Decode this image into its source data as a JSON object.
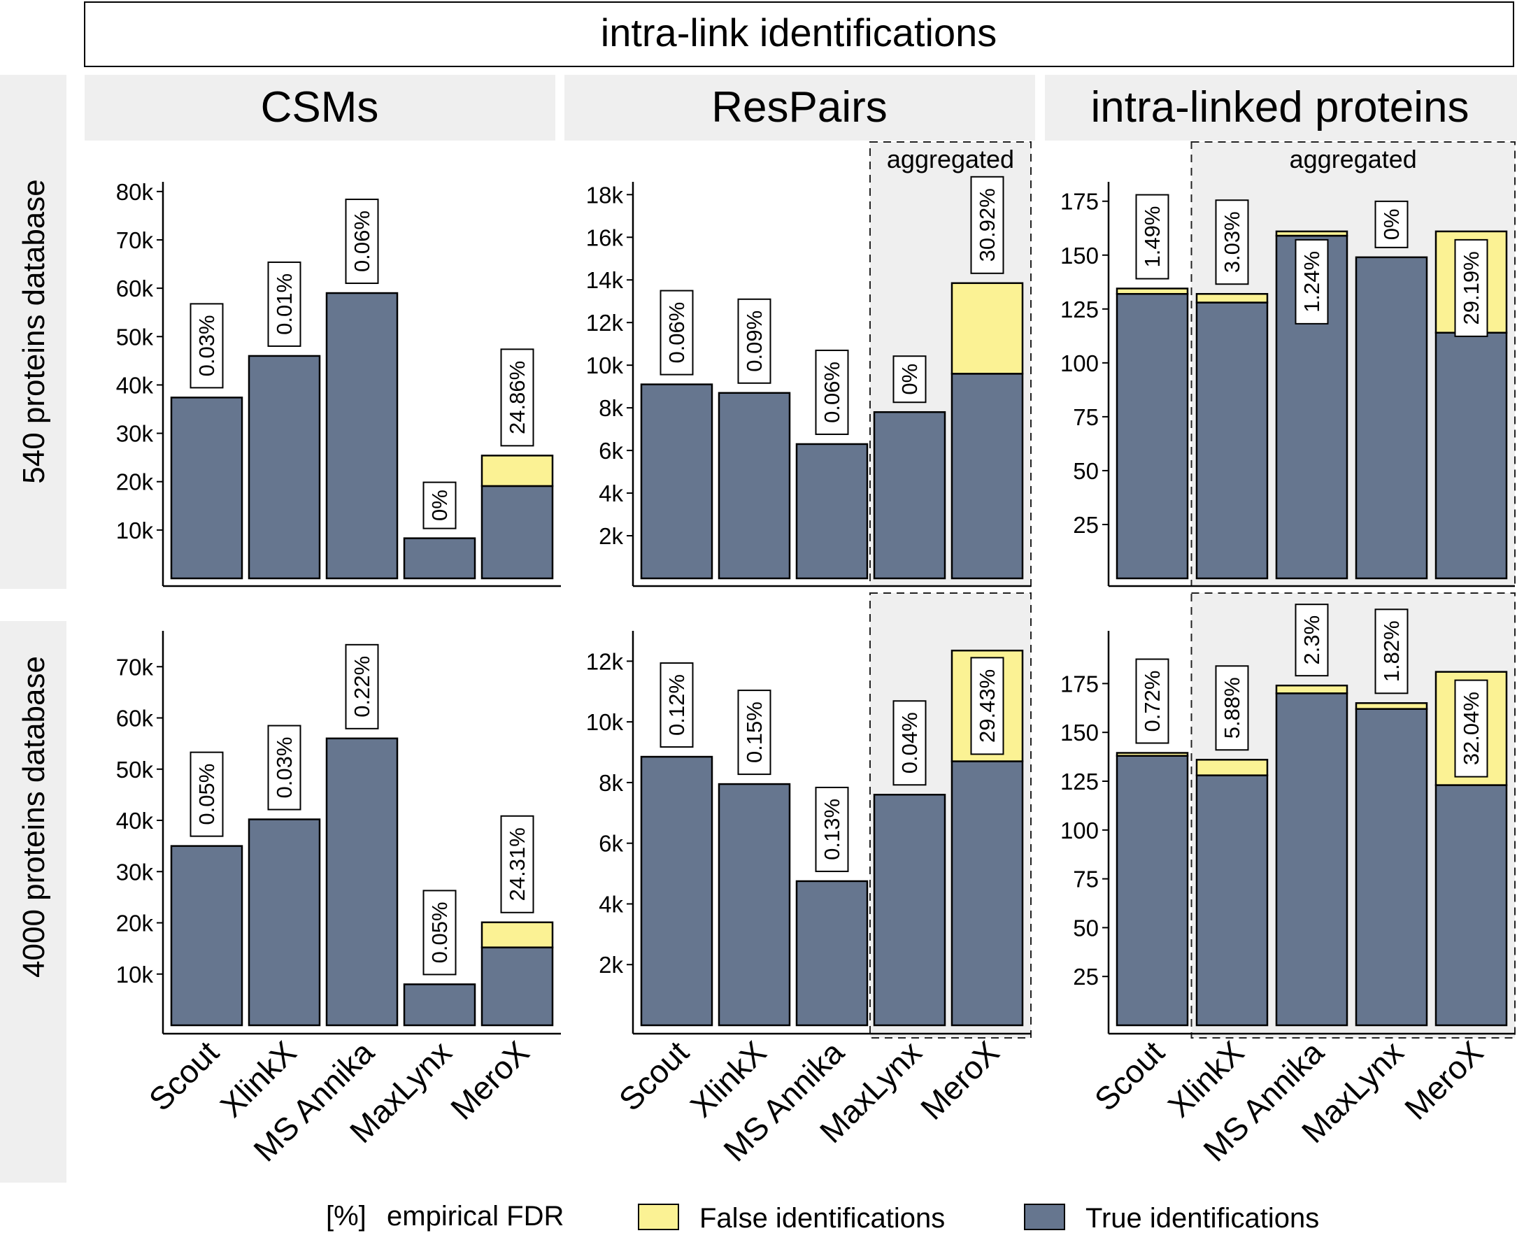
{
  "colors": {
    "true_fill": "#66768f",
    "false_fill": "#fbf294",
    "strip_bg": "#efefef",
    "aggregated_bg": "#efefef",
    "outline": "#000000"
  },
  "figure_title": "intra-link identifications",
  "column_titles": [
    "CSMs",
    "ResPairs",
    "intra-linked proteins"
  ],
  "row_titles": [
    "540 proteins database",
    "4000 proteins database"
  ],
  "aggregated_label": "aggregated",
  "legend": {
    "fdr_symbol": "[%]",
    "fdr_label": "empirical FDR",
    "false_label": "False identifications",
    "true_label": "True identifications"
  },
  "chart_data": [
    {
      "type": "bar",
      "stacked": true,
      "title": "CSMs",
      "row": "540 proteins database",
      "categories": [
        "Scout",
        "XlinkX",
        "MS Annika",
        "MaxLynx",
        "MeroX"
      ],
      "series": [
        {
          "name": "True identifications",
          "values": [
            37400,
            46000,
            59000,
            8300,
            19100
          ]
        },
        {
          "name": "False identifications",
          "values": [
            0,
            0,
            0,
            0,
            6300
          ]
        }
      ],
      "fdr_labels": [
        "0.03%",
        "0.01%",
        "0.06%",
        "0%",
        "24.86%"
      ],
      "ylim": [
        0,
        82000
      ],
      "yticks": [
        10000,
        20000,
        30000,
        40000,
        50000,
        60000,
        70000,
        80000
      ],
      "ytick_labels": [
        "10k",
        "20k",
        "30k",
        "40k",
        "50k",
        "60k",
        "70k",
        "80k"
      ],
      "aggregated_from": null
    },
    {
      "type": "bar",
      "stacked": true,
      "title": "ResPairs",
      "row": "540 proteins database",
      "categories": [
        "Scout",
        "XlinkX",
        "MS Annika",
        "MaxLynx",
        "MeroX"
      ],
      "series": [
        {
          "name": "True identifications",
          "values": [
            9100,
            8700,
            6300,
            7800,
            9600
          ]
        },
        {
          "name": "False identifications",
          "values": [
            0,
            0,
            0,
            0,
            4250
          ]
        }
      ],
      "fdr_labels": [
        "0.06%",
        "0.09%",
        "0.06%",
        "0%",
        "30.92%"
      ],
      "ylim": [
        0,
        18600
      ],
      "yticks": [
        2000,
        4000,
        6000,
        8000,
        10000,
        12000,
        14000,
        16000,
        18000
      ],
      "ytick_labels": [
        "2k",
        "4k",
        "6k",
        "8k",
        "10k",
        "12k",
        "14k",
        "16k",
        "18k"
      ],
      "aggregated_from": 3
    },
    {
      "type": "bar",
      "stacked": true,
      "title": "intra-linked proteins",
      "row": "540 proteins database",
      "categories": [
        "Scout",
        "XlinkX",
        "MS Annika",
        "MaxLynx",
        "MeroX"
      ],
      "series": [
        {
          "name": "True identifications",
          "values": [
            132,
            128,
            159,
            149,
            114
          ]
        },
        {
          "name": "False identifications",
          "values": [
            2.5,
            4,
            2,
            0,
            47
          ]
        }
      ],
      "fdr_labels": [
        "1.49%",
        "3.03%",
        "1.24%",
        "0%",
        "29.19%"
      ],
      "ylim": [
        0,
        184
      ],
      "yticks": [
        25,
        50,
        75,
        100,
        125,
        150,
        175
      ],
      "ytick_labels": [
        "25",
        "50",
        "75",
        "100",
        "125",
        "150",
        "175"
      ],
      "aggregated_from": 1
    },
    {
      "type": "bar",
      "stacked": true,
      "title": "CSMs",
      "row": "4000 proteins database",
      "categories": [
        "Scout",
        "XlinkX",
        "MS Annika",
        "MaxLynx",
        "MeroX"
      ],
      "series": [
        {
          "name": "True identifications",
          "values": [
            35000,
            40200,
            56000,
            8000,
            15200
          ]
        },
        {
          "name": "False identifications",
          "values": [
            0,
            0,
            0,
            0,
            4900
          ]
        }
      ],
      "fdr_labels": [
        "0.05%",
        "0.03%",
        "0.22%",
        "0.05%",
        "24.31%"
      ],
      "ylim": [
        0,
        77000
      ],
      "yticks": [
        10000,
        20000,
        30000,
        40000,
        50000,
        60000,
        70000
      ],
      "ytick_labels": [
        "10k",
        "20k",
        "30k",
        "40k",
        "50k",
        "60k",
        "70k"
      ],
      "aggregated_from": null
    },
    {
      "type": "bar",
      "stacked": true,
      "title": "ResPairs",
      "row": "4000 proteins database",
      "categories": [
        "Scout",
        "XlinkX",
        "MS Annika",
        "MaxLynx",
        "MeroX"
      ],
      "series": [
        {
          "name": "True identifications",
          "values": [
            8850,
            7950,
            4750,
            7600,
            8700
          ]
        },
        {
          "name": "False identifications",
          "values": [
            0,
            0,
            0,
            0,
            3650
          ]
        }
      ],
      "fdr_labels": [
        "0.12%",
        "0.15%",
        "0.13%",
        "0.04%",
        "29.43%"
      ],
      "ylim": [
        0,
        13000
      ],
      "yticks": [
        2000,
        4000,
        6000,
        8000,
        10000,
        12000
      ],
      "ytick_labels": [
        "2k",
        "4k",
        "6k",
        "8k",
        "10k",
        "12k"
      ],
      "aggregated_from": 3
    },
    {
      "type": "bar",
      "stacked": true,
      "title": "intra-linked proteins",
      "row": "4000 proteins database",
      "categories": [
        "Scout",
        "XlinkX",
        "MS Annika",
        "MaxLynx",
        "MeroX"
      ],
      "series": [
        {
          "name": "True identifications",
          "values": [
            138,
            128,
            170,
            162,
            123
          ]
        },
        {
          "name": "False identifications",
          "values": [
            1.5,
            8,
            4,
            3,
            58
          ]
        }
      ],
      "fdr_labels": [
        "0.72%",
        "5.88%",
        "2.3%",
        "1.82%",
        "32.04%"
      ],
      "ylim": [
        0,
        202
      ],
      "yticks": [
        25,
        50,
        75,
        100,
        125,
        150,
        175
      ],
      "ytick_labels": [
        "25",
        "50",
        "75",
        "100",
        "125",
        "150",
        "175"
      ],
      "aggregated_from": 1
    }
  ]
}
